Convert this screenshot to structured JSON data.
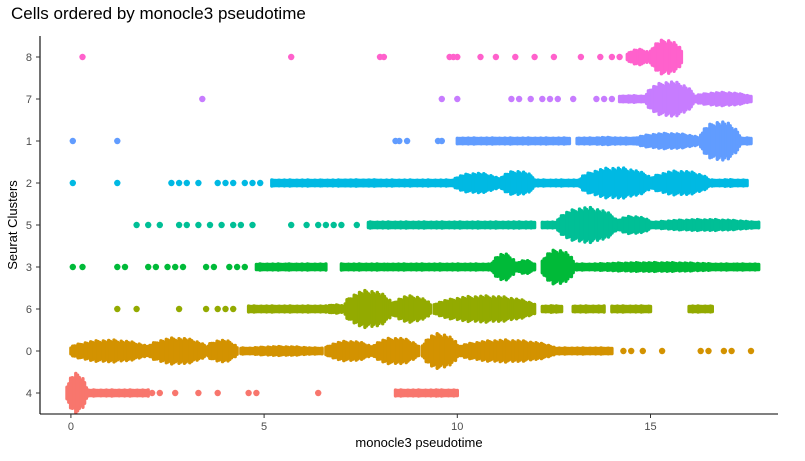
{
  "chart_data": {
    "type": "scatter",
    "title": "Cells ordered by monocle3 pseudotime",
    "xlabel": "monocle3 pseudotime",
    "ylabel": "Seurat Clusters",
    "xlim": [
      -0.8,
      18.3
    ],
    "x_ticks": [
      "0",
      "5",
      "10",
      "15"
    ],
    "x_tick_values": [
      0,
      5,
      10,
      15
    ],
    "categories": [
      "4",
      "0",
      "6",
      "3",
      "5",
      "2",
      "1",
      "7",
      "8"
    ],
    "grid": false,
    "legend": "none",
    "series": [
      {
        "category": "8",
        "color": "#FF61CC",
        "points": [
          0.3,
          5.7,
          8.0,
          8.1,
          9.8,
          9.9,
          10.0,
          10.6,
          11.0,
          11.5,
          12.0,
          12.5,
          13.2,
          13.7,
          14.0,
          14.2
        ],
        "clumps": [
          [
            14.4,
            15.0,
            0.35
          ],
          [
            15.0,
            15.8,
            0.8
          ]
        ]
      },
      {
        "category": "7",
        "color": "#C77CFF",
        "points": [
          3.4,
          9.6,
          10.0,
          11.4,
          11.6,
          11.9,
          12.2,
          12.4,
          12.6,
          13.0,
          13.6,
          13.8,
          14.0
        ],
        "clumps": [
          [
            14.2,
            14.9,
            0.15
          ],
          [
            14.9,
            16.1,
            0.8
          ],
          [
            16.1,
            17.6,
            0.3
          ]
        ]
      },
      {
        "category": "1",
        "color": "#619CFF",
        "points": [
          0.05,
          1.2,
          8.4,
          8.5,
          8.7,
          9.5,
          9.6
        ],
        "clumps": [
          [
            10.0,
            11.0,
            0.1
          ],
          [
            11.0,
            12.9,
            0.1
          ],
          [
            13.1,
            14.6,
            0.16
          ],
          [
            14.6,
            16.3,
            0.35
          ],
          [
            16.3,
            17.3,
            0.9
          ],
          [
            17.3,
            17.6,
            0.1
          ]
        ]
      },
      {
        "category": "2",
        "color": "#00B9E3",
        "points": [
          0.05,
          1.2,
          2.6,
          2.8,
          3.0,
          3.3,
          3.8,
          4.0,
          4.2,
          4.5,
          4.7,
          4.9
        ],
        "clumps": [
          [
            5.2,
            6.5,
            0.08
          ],
          [
            6.5,
            8.0,
            0.08
          ],
          [
            7.0,
            9.9,
            0.1
          ],
          [
            9.9,
            11.1,
            0.45
          ],
          [
            11.1,
            12.0,
            0.55
          ],
          [
            12.0,
            13.2,
            0.1
          ],
          [
            13.2,
            15.0,
            0.7
          ],
          [
            15.0,
            16.5,
            0.55
          ],
          [
            16.5,
            17.5,
            0.15
          ]
        ]
      },
      {
        "category": "5",
        "color": "#00BF96",
        "points": [
          1.7,
          2.0,
          2.3,
          2.8,
          3.0,
          3.3,
          3.6,
          3.9,
          4.2,
          4.4,
          4.7,
          5.7,
          6.1,
          6.4,
          6.6,
          6.8,
          7.0,
          7.4
        ],
        "clumps": [
          [
            7.7,
            11.6,
            0.09
          ],
          [
            11.6,
            12.0,
            0.14
          ],
          [
            12.2,
            12.6,
            0.1
          ],
          [
            12.6,
            14.1,
            0.8
          ],
          [
            14.1,
            15.0,
            0.4
          ],
          [
            15.0,
            17.8,
            0.25
          ]
        ]
      },
      {
        "category": "3",
        "color": "#00BA38",
        "points": [
          0.05,
          0.3,
          1.2,
          1.4,
          2.0,
          2.2,
          2.5,
          2.7,
          2.9,
          3.5,
          3.7,
          4.1,
          4.3,
          4.5
        ],
        "clumps": [
          [
            4.8,
            5.6,
            0.12
          ],
          [
            5.6,
            6.6,
            0.09
          ],
          [
            7.0,
            8.2,
            0.08
          ],
          [
            8.2,
            10.9,
            0.12
          ],
          [
            10.9,
            11.5,
            0.6
          ],
          [
            11.5,
            12.0,
            0.3
          ],
          [
            12.2,
            13.0,
            0.8
          ],
          [
            13.0,
            17.2,
            0.2
          ],
          [
            17.2,
            17.8,
            0.1
          ]
        ]
      },
      {
        "category": "6",
        "color": "#93AA00",
        "points": [
          1.2,
          1.7,
          2.8,
          3.5,
          3.8,
          4.0,
          4.2,
          4.9,
          5.3,
          5.7,
          8.4
        ],
        "clumps": [
          [
            4.6,
            6.6,
            0.12
          ],
          [
            6.6,
            7.1,
            0.2
          ],
          [
            7.1,
            8.3,
            0.85
          ],
          [
            8.3,
            9.3,
            0.6
          ],
          [
            9.4,
            12.0,
            0.6
          ],
          [
            12.2,
            12.7,
            0.15
          ],
          [
            13.0,
            13.8,
            0.08
          ],
          [
            14.0,
            15.0,
            0.08
          ],
          [
            16.0,
            16.6,
            0.1
          ]
        ]
      },
      {
        "category": "0",
        "color": "#D39200",
        "points": [
          12.6,
          13.0,
          13.5,
          13.8,
          14.3,
          14.5,
          14.8,
          15.3,
          16.3,
          16.5,
          16.9,
          17.1,
          17.6
        ],
        "clumps": [
          [
            0.0,
            2.0,
            0.5
          ],
          [
            2.0,
            3.5,
            0.6
          ],
          [
            3.5,
            4.3,
            0.5
          ],
          [
            4.4,
            6.5,
            0.2
          ],
          [
            6.6,
            7.8,
            0.45
          ],
          [
            7.8,
            9.0,
            0.6
          ],
          [
            9.1,
            10.0,
            0.8
          ],
          [
            10.0,
            12.5,
            0.5
          ],
          [
            12.5,
            14.0,
            0.1
          ]
        ]
      },
      {
        "category": "4",
        "color": "#F8766D",
        "points": [
          1.0,
          1.5,
          2.1,
          2.3,
          2.7,
          3.3,
          3.8,
          4.6,
          4.8,
          6.4
        ],
        "clumps": [
          [
            -0.1,
            0.4,
            0.9
          ],
          [
            0.4,
            2.0,
            0.12
          ],
          [
            8.4,
            9.5,
            0.1
          ],
          [
            9.5,
            10.0,
            0.1
          ]
        ]
      }
    ]
  }
}
